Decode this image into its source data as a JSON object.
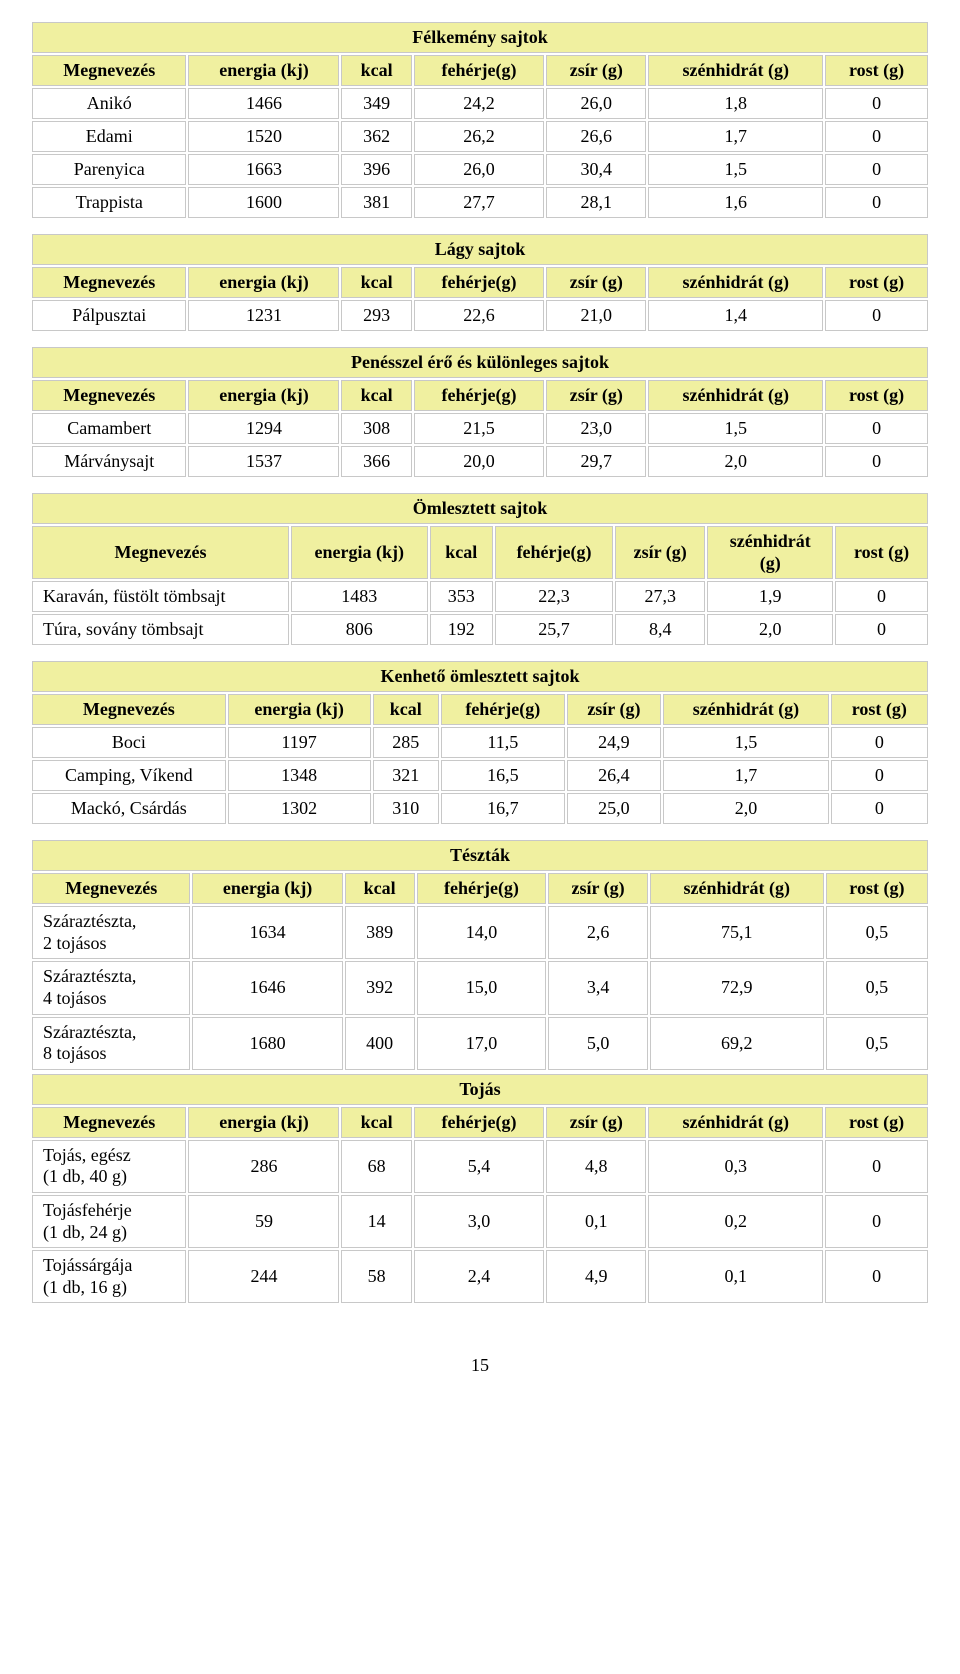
{
  "columns_std": [
    "Megnevezés",
    "energia (kj)",
    "kcal",
    "fehérje(g)",
    "zsír (g)",
    "szénhidrát (g)",
    "rost (g)"
  ],
  "columns_alt": [
    "Megnevezés",
    "energia (kj)",
    "kcal",
    "fehérje(g)",
    "zsír (g)",
    "szénhidrát\n(g)",
    "rost (g)"
  ],
  "tables": [
    {
      "title": "Félkemény sajtok",
      "cols": "std",
      "rows": [
        [
          "Anikó",
          "1466",
          "349",
          "24,2",
          "26,0",
          "1,8",
          "0"
        ],
        [
          "Edami",
          "1520",
          "362",
          "26,2",
          "26,6",
          "1,7",
          "0"
        ],
        [
          "Parenyica",
          "1663",
          "396",
          "26,0",
          "30,4",
          "1,5",
          "0"
        ],
        [
          "Trappista",
          "1600",
          "381",
          "27,7",
          "28,1",
          "1,6",
          "0"
        ]
      ]
    },
    {
      "title": "Lágy sajtok",
      "cols": "std",
      "rows": [
        [
          "Pálpusztai",
          "1231",
          "293",
          "22,6",
          "21,0",
          "1,4",
          "0"
        ]
      ]
    },
    {
      "title": "Penésszel érő és különleges sajtok",
      "cols": "std",
      "rows": [
        [
          "Camambert",
          "1294",
          "308",
          "21,5",
          "23,0",
          "1,5",
          "0"
        ],
        [
          "Márványsajt",
          "1537",
          "366",
          "20,0",
          "29,7",
          "2,0",
          "0"
        ]
      ]
    },
    {
      "title": "Ömlesztett sajtok",
      "cols": "alt",
      "name_align": "left",
      "rows": [
        [
          "Karaván, füstölt tömbsajt",
          "1483",
          "353",
          "22,3",
          "27,3",
          "1,9",
          "0"
        ],
        [
          "Túra, sovány tömbsajt",
          "806",
          "192",
          "25,7",
          "8,4",
          "2,0",
          "0"
        ]
      ]
    },
    {
      "title": "Kenhető ömlesztett sajtok",
      "cols": "std",
      "rows": [
        [
          "Boci",
          "1197",
          "285",
          "11,5",
          "24,9",
          "1,5",
          "0"
        ],
        [
          "Camping, Víkend",
          "1348",
          "321",
          "16,5",
          "26,4",
          "1,7",
          "0"
        ],
        [
          "Mackó, Csárdás",
          "1302",
          "310",
          "16,7",
          "25,0",
          "2,0",
          "0"
        ]
      ]
    },
    {
      "title": "Tészták",
      "cols": "std",
      "tight": true,
      "name_align": "left",
      "rows": [
        [
          "Száraztészta,\n2 tojásos",
          "1634",
          "389",
          "14,0",
          "2,6",
          "75,1",
          "0,5"
        ],
        [
          "Száraztészta,\n4 tojásos",
          "1646",
          "392",
          "15,0",
          "3,4",
          "72,9",
          "0,5"
        ],
        [
          "Száraztészta,\n8 tojásos",
          "1680",
          "400",
          "17,0",
          "5,0",
          "69,2",
          "0,5"
        ]
      ]
    },
    {
      "title": "Tojás",
      "cols": "std",
      "tight": true,
      "name_align": "left",
      "rows": [
        [
          "Tojás, egész\n(1 db, 40 g)",
          "286",
          "68",
          "5,4",
          "4,8",
          "0,3",
          "0"
        ],
        [
          "Tojásfehérje\n(1 db, 24 g)",
          "59",
          "14",
          "3,0",
          "0,1",
          "0,2",
          "0"
        ],
        [
          "Tojássárgája\n(1 db, 16 g)",
          "244",
          "58",
          "2,4",
          "4,9",
          "0,1",
          "0"
        ]
      ]
    }
  ],
  "page_number": "15",
  "style": {
    "header_bg": "#f0f0a0",
    "border_color": "#c8c8c8",
    "font_family": "Times New Roman"
  }
}
